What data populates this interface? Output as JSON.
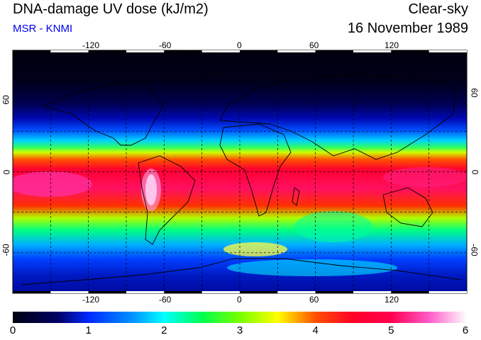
{
  "header": {
    "title": "DNA-damage UV dose (kJ/m2)",
    "subtitle": "MSR - KNMI",
    "sky_condition": "Clear-sky",
    "date": "16 November 1989"
  },
  "map": {
    "projection": "equirectangular",
    "extent": {
      "lon": [
        -180,
        180
      ],
      "lat": [
        -90,
        90
      ]
    },
    "lon_ticks": [
      "-120",
      "-60",
      "0",
      "60",
      "120"
    ],
    "lat_ticks": [
      "60",
      "0",
      "-60"
    ],
    "grid_lines": true,
    "grid_spacing_deg": 30,
    "regions": [
      {
        "name": "polar night north",
        "lat": [
          60,
          90
        ],
        "value_kj_m2": 0.0
      },
      {
        "name": "northern mid-latitudes",
        "lat": [
          30,
          60
        ],
        "value_kj_m2": 1.0
      },
      {
        "name": "northern subtropics",
        "lat": [
          15,
          30
        ],
        "value_kj_m2": 3.0
      },
      {
        "name": "equatorial belt",
        "lat": [
          -20,
          10
        ],
        "value_kj_m2": 4.5
      },
      {
        "name": "southern subtropics",
        "lat": [
          -40,
          -20
        ],
        "value_kj_m2": 4.0
      },
      {
        "name": "southern ocean",
        "lat": [
          -55,
          -40
        ],
        "value_kj_m2": 2.5
      },
      {
        "name": "antarctic",
        "lat": [
          -90,
          -60
        ],
        "value_kj_m2": 1.2
      },
      {
        "name": "andes maximum",
        "lat": [
          -25,
          -10
        ],
        "lon": [
          -72,
          -66
        ],
        "value_kj_m2": 6.0
      }
    ]
  },
  "colorbar": {
    "min": 0,
    "max": 6,
    "labels": [
      "0",
      "1",
      "2",
      "3",
      "4",
      "5",
      "6"
    ],
    "stops": [
      {
        "value": 0.0,
        "color": "#000010"
      },
      {
        "value": 0.6,
        "color": "#000064"
      },
      {
        "value": 1.0,
        "color": "#0028ff"
      },
      {
        "value": 1.6,
        "color": "#0096ff"
      },
      {
        "value": 2.0,
        "color": "#00ffff"
      },
      {
        "value": 2.5,
        "color": "#00ff50"
      },
      {
        "value": 3.0,
        "color": "#78ff00"
      },
      {
        "value": 3.5,
        "color": "#ffff00"
      },
      {
        "value": 4.0,
        "color": "#ff5000"
      },
      {
        "value": 4.5,
        "color": "#ff0028"
      },
      {
        "value": 5.0,
        "color": "#ff0050"
      },
      {
        "value": 5.5,
        "color": "#ff5ac8"
      },
      {
        "value": 6.0,
        "color": "#ffffff"
      }
    ]
  }
}
